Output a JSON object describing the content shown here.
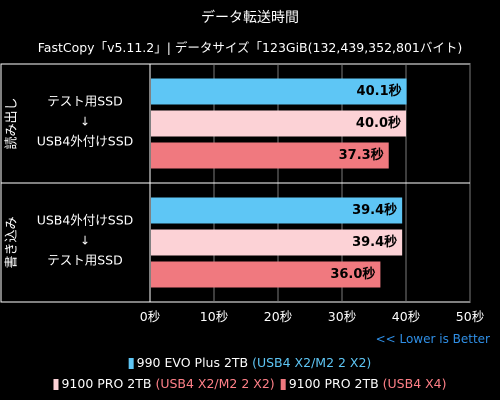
{
  "chart_data": {
    "type": "bar",
    "orientation": "horizontal",
    "title": "データ転送時間",
    "subtitle": "FastCopy「v5.11.2」| データサイズ「123GiB(132,439,352,801バイト)",
    "note": "<< Lower is Better",
    "unit": "秒",
    "xlim": [
      0,
      50
    ],
    "xticks": [
      0,
      10,
      20,
      30,
      40,
      50
    ],
    "xtick_labels": [
      "0秒",
      "10秒",
      "20秒",
      "30秒",
      "40秒",
      "50秒"
    ],
    "grid": true,
    "legend_position": "bottom",
    "groups": [
      {
        "name": "読み出し",
        "line1": "テスト用SSD",
        "arrow": "↓",
        "line2": "USB4外付けSSD",
        "values": [
          40.1,
          40.0,
          37.3
        ],
        "value_labels": [
          "40.1秒",
          "40.0秒",
          "37.3秒"
        ]
      },
      {
        "name": "書き込み",
        "line1": "USB4外付けSSD",
        "arrow": "↓",
        "line2": "テスト用SSD",
        "values": [
          39.4,
          39.4,
          36.0
        ],
        "value_labels": [
          "39.4秒",
          "39.4秒",
          "36.0秒"
        ]
      }
    ],
    "series": [
      {
        "name": "990 EVO Plus 2TB",
        "interface": "(USB4 X2/M2 2 X2)",
        "color": "#5ec6f5",
        "accent": "#5ec6f5"
      },
      {
        "name": "9100 PRO 2TB",
        "interface": "(USB4 X2/M2 2 X2)",
        "color": "#fcd2d6",
        "accent": "#ff8088"
      },
      {
        "name": "9100 PRO 2TB",
        "interface": "(USB4 X4)",
        "color": "#f0797f",
        "accent": "#ff8088"
      }
    ]
  }
}
